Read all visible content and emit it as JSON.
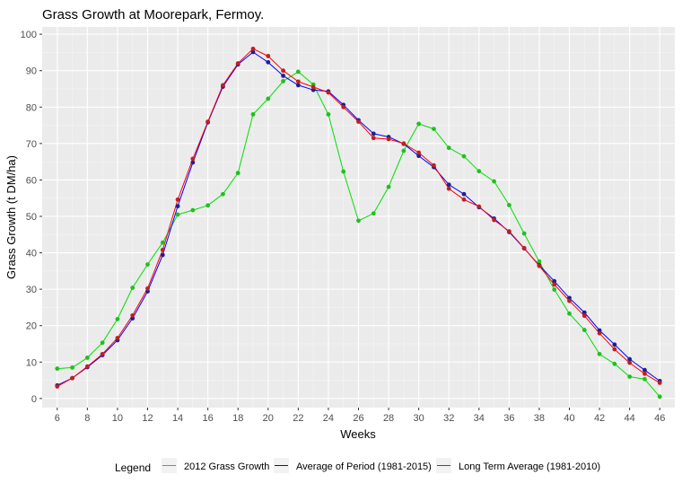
{
  "chart_data": {
    "type": "line",
    "title": "Grass Growth at Moorepark, Fermoy.",
    "xlabel": "Weeks",
    "ylabel": "Grass Growth (t DM/ha)",
    "xlim": [
      5,
      47
    ],
    "ylim": [
      -2.5,
      102
    ],
    "x_ticks": [
      6,
      8,
      10,
      12,
      14,
      16,
      18,
      20,
      22,
      24,
      26,
      28,
      30,
      32,
      34,
      36,
      38,
      40,
      42,
      44,
      46
    ],
    "y_ticks": [
      0,
      10,
      20,
      30,
      40,
      50,
      60,
      70,
      80,
      90,
      100
    ],
    "grid": true,
    "legend": {
      "title": "Legend",
      "position": "bottom"
    },
    "x": [
      6,
      7,
      8,
      9,
      10,
      11,
      12,
      13,
      14,
      15,
      16,
      17,
      18,
      19,
      20,
      21,
      22,
      23,
      24,
      25,
      26,
      27,
      28,
      29,
      30,
      31,
      32,
      33,
      34,
      35,
      36,
      37,
      38,
      39,
      40,
      41,
      42,
      43,
      44,
      45,
      46
    ],
    "series": [
      {
        "name": "2012 Grass Growth",
        "color": "#00e000",
        "point_color": "#20c020",
        "values": [
          8.2,
          8.5,
          11.2,
          15.3,
          21.8,
          30.4,
          36.8,
          42.8,
          50.5,
          51.7,
          53,
          56.1,
          61.9,
          78,
          82.3,
          87.1,
          89.7,
          86.2,
          78,
          62.3,
          48.8,
          50.8,
          58.1,
          68,
          75.4,
          74,
          68.8,
          66.5,
          62.4,
          59.6,
          53.1,
          45.3,
          37.6,
          29.9,
          23.3,
          18.8,
          12.2,
          9.5,
          6,
          5.3,
          0.5
        ]
      },
      {
        "name": "Average of Period (1981-2015)",
        "color": "#0000ff",
        "point_color": "#202090",
        "values": [
          3.6,
          5.6,
          8.6,
          11.9,
          16,
          22,
          29.4,
          39.4,
          52.8,
          64.8,
          75.8,
          85.6,
          91.7,
          95.1,
          92.3,
          88.6,
          86,
          84.7,
          84.3,
          80.6,
          76.4,
          72.7,
          71.8,
          69.9,
          66.6,
          63.5,
          58.7,
          56.1,
          52.5,
          49.4,
          45.7,
          41.2,
          36.6,
          32.2,
          27.6,
          23.6,
          18.7,
          14.8,
          10.8,
          7.8,
          4.8
        ]
      },
      {
        "name": "Long Term Average (1981-2010)",
        "color": "#ff0000",
        "point_color": "#c02020",
        "values": [
          3.3,
          5.6,
          8.8,
          12.2,
          16.6,
          22.8,
          30.2,
          40.8,
          54.6,
          65.8,
          76,
          86,
          92,
          96,
          94,
          90,
          87,
          85.5,
          84,
          80,
          76,
          71.5,
          71.2,
          70,
          67.5,
          64,
          57.6,
          54.6,
          52.7,
          49,
          45.9,
          41.3,
          36.4,
          31.3,
          26.8,
          22.7,
          17.9,
          13.5,
          9.8,
          6.8,
          4.3
        ]
      }
    ]
  }
}
